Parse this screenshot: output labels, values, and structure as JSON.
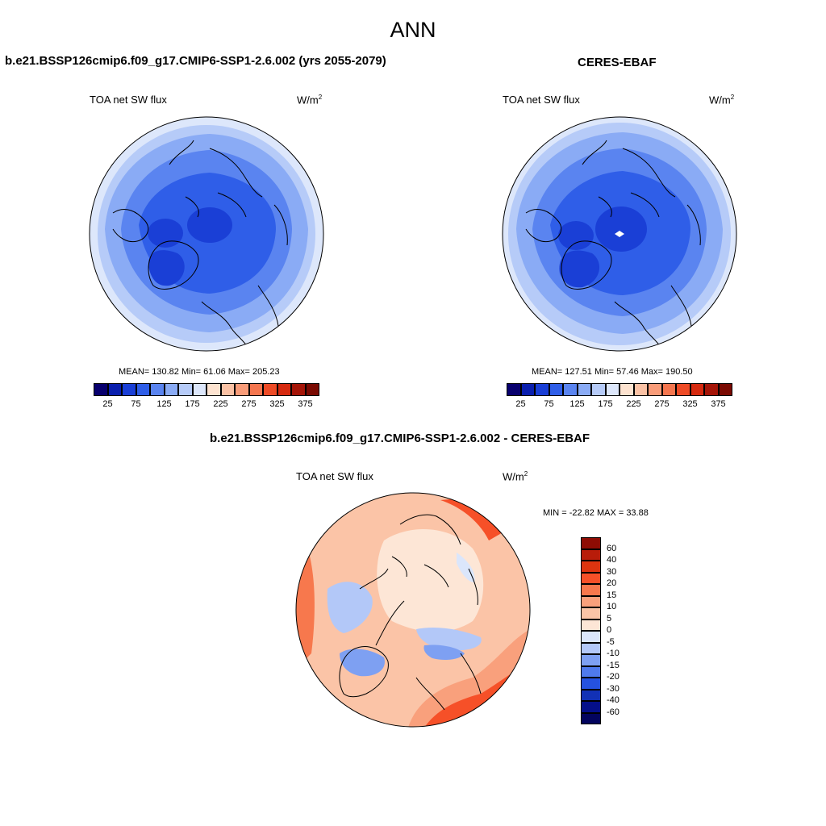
{
  "figure": {
    "title": "ANN"
  },
  "panels": [
    {
      "case": "b.e21.BSSP126cmip6.f09_g17.CMIP6-SSP1-2.6.002 (yrs 2055-2079)",
      "variable": "TOA net SW flux",
      "units_base": "W/m",
      "units_exp": "2",
      "stats": "MEAN= 130.82  Min=  61.06  Max= 205.23"
    },
    {
      "case": "CERES-EBAF",
      "variable": "TOA net SW flux",
      "units_base": "W/m",
      "units_exp": "2",
      "stats": "MEAN= 127.51  Min=  57.46  Max= 190.50"
    }
  ],
  "diff": {
    "case": "b.e21.BSSP126cmip6.f09_g17.CMIP6-SSP1-2.6.002 - CERES-EBAF",
    "variable": "TOA net SW flux",
    "units_base": "W/m",
    "units_exp": "2",
    "stats": "MIN = -22.82 MAX =  33.88"
  },
  "colorbar_main": {
    "labels": [
      "25",
      "75",
      "125",
      "175",
      "225",
      "275",
      "325",
      "375"
    ],
    "colors": [
      "#08006e",
      "#0a1fae",
      "#1a3fd6",
      "#2f5ee8",
      "#5a84f0",
      "#8aabf5",
      "#b6cbf8",
      "#dde7fb",
      "#fde3d0",
      "#fbc2a5",
      "#f99c79",
      "#f5764f",
      "#ee4b26",
      "#d62a10",
      "#a51508",
      "#7a0a02"
    ]
  },
  "colorbar_diff": {
    "labels": [
      "60",
      "40",
      "30",
      "20",
      "15",
      "10",
      "5",
      "0",
      "-5",
      "-10",
      "-15",
      "-20",
      "-30",
      "-40",
      "-60"
    ],
    "colors": [
      "#8e0c04",
      "#b81c0a",
      "#dc3410",
      "#f65028",
      "#f7784d",
      "#f9a07c",
      "#fbc4a7",
      "#fde6d6",
      "#dbe6fb",
      "#b3c8f8",
      "#7ea0f2",
      "#4f7aec",
      "#2552e0",
      "#1231b6",
      "#050f8a",
      "#03045e"
    ]
  }
}
